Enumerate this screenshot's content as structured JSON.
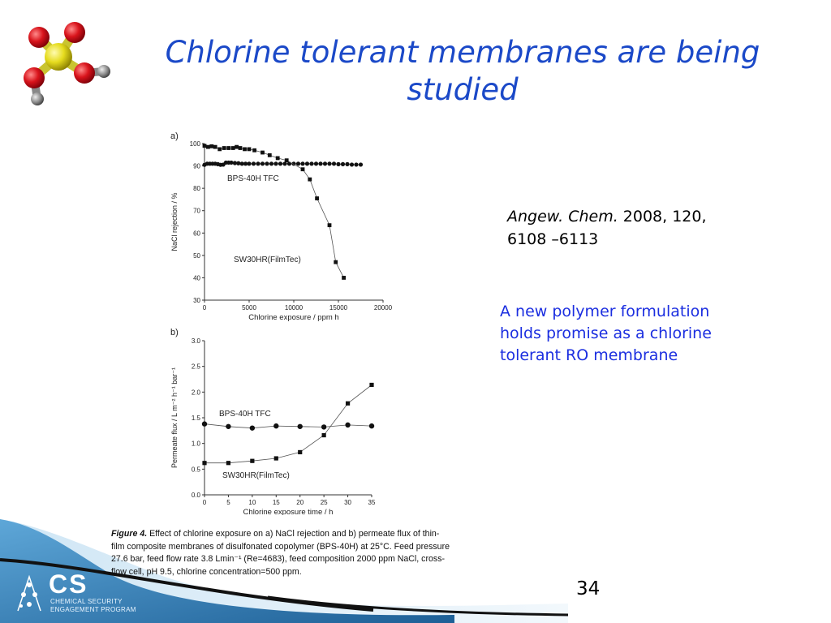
{
  "slide": {
    "title": "Chlorine tolerant membranes are being studied",
    "citation_journal": "Angew. Chem.",
    "citation_rest": " 2008, 120, 6108 –6113",
    "summary": "A new polymer formulation holds promise as a chlorine tolerant RO membrane",
    "page_number": "34"
  },
  "caption": {
    "label": "Figure 4.",
    "text": "  Effect of chlorine exposure on a) NaCl rejection and b) permeate flux of thin-film composite membranes of disulfonated copolymer (BPS-40H) at 25°C. Feed pressure 27.6 bar, feed flow rate 3.8 Lmin⁻¹ (Re=4683), feed composition 2000 ppm NaCl, cross-flow cell, pH 9.5, chlorine concentration=500 ppm."
  },
  "logo": {
    "letters": "CS",
    "line1": "CHEMICAL SECURITY",
    "line2": "ENGAGEMENT PROGRAM"
  },
  "colors": {
    "title": "#1b49c8",
    "summary": "#1b2ee0",
    "molecule_oxygen": "#d9141c",
    "molecule_sulfur": "#e6dc1e",
    "molecule_hydrogen": "#8a8a8a",
    "wave_blue": "#2f7fb8"
  },
  "chart_data": [
    {
      "type": "line",
      "panel": "a)",
      "xlabel": "Chlorine exposure / ppm h",
      "ylabel": "NaCl rejection / %",
      "xlim": [
        0,
        20000
      ],
      "ylim": [
        30,
        100
      ],
      "xticks": [
        0,
        5000,
        10000,
        15000,
        20000
      ],
      "yticks": [
        30,
        40,
        50,
        60,
        70,
        80,
        90,
        100
      ],
      "grid": false,
      "series": [
        {
          "name": "BPS-40H TFC",
          "marker": "circle",
          "x": [
            0,
            300,
            600,
            900,
            1200,
            1500,
            1800,
            2100,
            2400,
            2700,
            3000,
            3400,
            3800,
            4200,
            4600,
            5000,
            5500,
            6000,
            6500,
            7000,
            7500,
            8000,
            8500,
            9000,
            9500,
            10000,
            10500,
            11000,
            11500,
            12000,
            12500,
            13000,
            13500,
            14000,
            14500,
            15000,
            15500,
            16000,
            16500,
            17000,
            17500
          ],
          "values": [
            90.5,
            91,
            91,
            91,
            91,
            90.8,
            90.5,
            90.6,
            91.5,
            91.5,
            91.5,
            91.3,
            91.2,
            91,
            91,
            91,
            91,
            91,
            91,
            91,
            91,
            91,
            91,
            91,
            91,
            91,
            91,
            91,
            91,
            91,
            91,
            91,
            91,
            91,
            91,
            90.8,
            90.8,
            90.8,
            90.6,
            90.6,
            90.6
          ]
        },
        {
          "name": "SW30HR(FilmTec)",
          "marker": "square",
          "x": [
            0,
            400,
            800,
            1200,
            1700,
            2200,
            2700,
            3200,
            3600,
            4000,
            4500,
            5000,
            5600,
            6500,
            7300,
            8200,
            9200,
            11000,
            11800,
            12600,
            14000,
            14700,
            15600
          ],
          "values": [
            99,
            98.5,
            98.8,
            98.5,
            97.5,
            98,
            98,
            98,
            98.5,
            98,
            97.5,
            97.5,
            97,
            96,
            94.8,
            93.5,
            92.5,
            88.5,
            84,
            75.5,
            63.5,
            47,
            40
          ]
        }
      ]
    },
    {
      "type": "line",
      "panel": "b)",
      "xlabel": "Chlorine exposure time / h",
      "ylabel": "Permeate flux / L m⁻² h⁻¹ bar⁻¹",
      "xlim": [
        0,
        35
      ],
      "ylim": [
        0,
        3.0
      ],
      "xticks": [
        0,
        5,
        10,
        15,
        20,
        25,
        30,
        35
      ],
      "yticks": [
        0.0,
        0.5,
        1.0,
        1.5,
        2.0,
        2.5,
        3.0
      ],
      "grid": false,
      "series": [
        {
          "name": "BPS-40H TFC",
          "marker": "circle",
          "x": [
            0,
            5,
            10,
            15,
            20,
            25,
            30,
            35
          ],
          "values": [
            1.38,
            1.33,
            1.3,
            1.34,
            1.33,
            1.32,
            1.36,
            1.34
          ]
        },
        {
          "name": "SW30HR(FilmTec)",
          "marker": "square",
          "x": [
            0,
            5,
            10,
            15,
            20,
            25,
            30,
            35
          ],
          "values": [
            0.62,
            0.62,
            0.66,
            0.71,
            0.83,
            1.16,
            1.78,
            2.14
          ]
        }
      ]
    }
  ]
}
